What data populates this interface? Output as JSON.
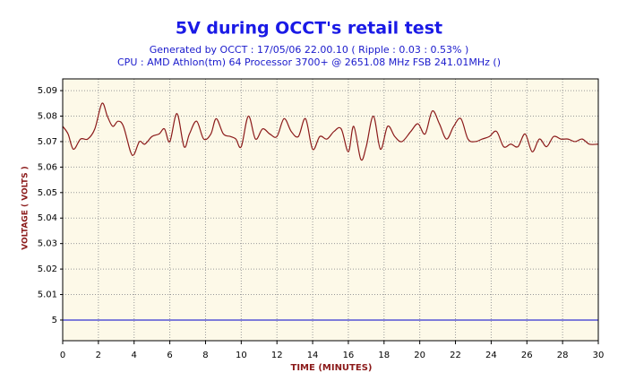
{
  "chart_data": {
    "type": "line",
    "title": "5V during OCCT's retail test",
    "subtitle": [
      "Generated by OCCT : 17/05/06 22.00.10 ( Ripple : 0.03 : 0.53% )",
      "CPU : AMD Athlon(tm) 64 Processor 3700+ @ 2651.08 MHz FSB 241.01MHz ()"
    ],
    "x_label": "TIME (MINUTES)",
    "y_label": "VOLTAGE ( VOLTS )",
    "xlim": [
      0,
      30
    ],
    "ylim": [
      4.9919,
      5.0946
    ],
    "xticks": [
      0,
      2,
      4,
      6,
      8,
      10,
      12,
      14,
      16,
      18,
      20,
      22,
      24,
      26,
      28,
      30
    ],
    "yticks": [
      5,
      5.01,
      5.02,
      5.03,
      5.04,
      5.05,
      5.06,
      5.07,
      5.08,
      5.09
    ],
    "grid": true,
    "background": "#fdf9e8",
    "reference_line": {
      "value": 5,
      "color": "#0000cc"
    },
    "x": [
      0,
      0.3,
      0.6,
      1.0,
      1.4,
      1.8,
      2.2,
      2.5,
      2.8,
      3.1,
      3.4,
      3.8,
      4.0,
      4.3,
      4.6,
      5.0,
      5.4,
      5.7,
      6.0,
      6.4,
      6.8,
      7.1,
      7.5,
      7.9,
      8.3,
      8.6,
      9.0,
      9.4,
      9.7,
      10.0,
      10.4,
      10.8,
      11.2,
      11.6,
      12.0,
      12.4,
      12.8,
      13.2,
      13.6,
      14.0,
      14.4,
      14.8,
      15.2,
      15.6,
      16.0,
      16.3,
      16.7,
      17.0,
      17.4,
      17.8,
      18.2,
      18.6,
      19.0,
      19.5,
      19.9,
      20.3,
      20.7,
      21.1,
      21.5,
      21.9,
      22.3,
      22.7,
      23.1,
      23.5,
      23.9,
      24.3,
      24.7,
      25.1,
      25.5,
      25.9,
      26.3,
      26.7,
      27.1,
      27.5,
      27.9,
      28.3,
      28.7,
      29.1,
      29.5,
      30.0
    ],
    "series": [
      {
        "color": "#8b1a1a",
        "values": [
          5.076,
          5.073,
          5.067,
          5.071,
          5.071,
          5.075,
          5.085,
          5.08,
          5.076,
          5.078,
          5.076,
          5.066,
          5.065,
          5.07,
          5.069,
          5.072,
          5.073,
          5.075,
          5.07,
          5.081,
          5.068,
          5.073,
          5.078,
          5.071,
          5.073,
          5.079,
          5.073,
          5.072,
          5.071,
          5.068,
          5.08,
          5.071,
          5.075,
          5.073,
          5.072,
          5.079,
          5.074,
          5.072,
          5.079,
          5.067,
          5.072,
          5.071,
          5.074,
          5.075,
          5.066,
          5.076,
          5.063,
          5.068,
          5.08,
          5.067,
          5.076,
          5.072,
          5.07,
          5.074,
          5.077,
          5.073,
          5.082,
          5.077,
          5.071,
          5.076,
          5.079,
          5.071,
          5.07,
          5.071,
          5.072,
          5.074,
          5.068,
          5.069,
          5.068,
          5.073,
          5.066,
          5.071,
          5.068,
          5.072,
          5.071,
          5.071,
          5.07,
          5.071,
          5.069,
          5.069
        ]
      }
    ]
  }
}
